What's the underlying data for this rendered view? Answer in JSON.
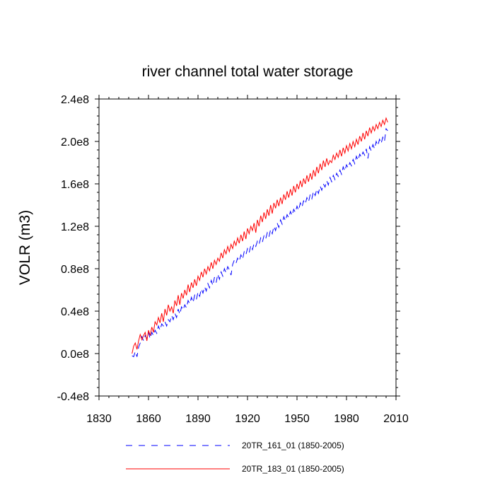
{
  "chart_data": {
    "type": "line",
    "title": "river channel total water storage",
    "xlabel": "",
    "ylabel": "VOLR  (m3)",
    "xlim": [
      1830,
      2010
    ],
    "ylim": [
      -0.4,
      2.4
    ],
    "y_scale_note": "values in units of 1e8 m3",
    "x_ticks": [
      1830,
      1860,
      1890,
      1920,
      1950,
      1980,
      2010
    ],
    "x_tick_labels": [
      "1830",
      "1860",
      "1890",
      "1920",
      "1950",
      "1980",
      "2010"
    ],
    "y_ticks": [
      -0.4,
      0.0,
      0.4,
      0.8,
      1.2,
      1.6,
      2.0,
      2.4
    ],
    "y_tick_labels": [
      "-0.4e8",
      "0.0e8",
      "0.4e8",
      "0.8e8",
      "1.2e8",
      "1.6e8",
      "2.0e8",
      "2.4e8"
    ],
    "grid": false,
    "legend_position": "bottom",
    "series": [
      {
        "name": "20TR_161_01 (1850-2005)",
        "color": "#0000ff",
        "style": "dashed",
        "x": [
          1850,
          1851,
          1852,
          1853,
          1854,
          1855,
          1856,
          1857,
          1858,
          1859,
          1860,
          1861,
          1862,
          1863,
          1864,
          1865,
          1866,
          1867,
          1868,
          1869,
          1870,
          1871,
          1872,
          1873,
          1874,
          1875,
          1876,
          1877,
          1878,
          1879,
          1880,
          1881,
          1882,
          1883,
          1884,
          1885,
          1886,
          1887,
          1888,
          1889,
          1890,
          1891,
          1892,
          1893,
          1894,
          1895,
          1896,
          1897,
          1898,
          1899,
          1900,
          1901,
          1902,
          1903,
          1904,
          1905,
          1906,
          1907,
          1908,
          1909,
          1910,
          1911,
          1912,
          1913,
          1914,
          1915,
          1916,
          1917,
          1918,
          1919,
          1920,
          1921,
          1922,
          1923,
          1924,
          1925,
          1926,
          1927,
          1928,
          1929,
          1930,
          1931,
          1932,
          1933,
          1934,
          1935,
          1936,
          1937,
          1938,
          1939,
          1940,
          1941,
          1942,
          1943,
          1944,
          1945,
          1946,
          1947,
          1948,
          1949,
          1950,
          1951,
          1952,
          1953,
          1954,
          1955,
          1956,
          1957,
          1958,
          1959,
          1960,
          1961,
          1962,
          1963,
          1964,
          1965,
          1966,
          1967,
          1968,
          1969,
          1970,
          1971,
          1972,
          1973,
          1974,
          1975,
          1976,
          1977,
          1978,
          1979,
          1980,
          1981,
          1982,
          1983,
          1984,
          1985,
          1986,
          1987,
          1988,
          1989,
          1990,
          1991,
          1992,
          1993,
          1994,
          1995,
          1996,
          1997,
          1998,
          1999,
          2000,
          2001,
          2002,
          2003,
          2004,
          2005
        ],
        "values": [
          -0.02,
          -0.03,
          0.02,
          -0.03,
          0.06,
          0.1,
          0.16,
          0.12,
          0.17,
          0.14,
          0.2,
          0.14,
          0.2,
          0.17,
          0.22,
          0.19,
          0.26,
          0.22,
          0.28,
          0.26,
          0.3,
          0.26,
          0.32,
          0.3,
          0.36,
          0.32,
          0.38,
          0.34,
          0.42,
          0.37,
          0.44,
          0.41,
          0.46,
          0.43,
          0.5,
          0.47,
          0.53,
          0.48,
          0.55,
          0.51,
          0.58,
          0.54,
          0.61,
          0.57,
          0.63,
          0.59,
          0.66,
          0.62,
          0.69,
          0.64,
          0.72,
          0.67,
          0.75,
          0.7,
          0.77,
          0.73,
          0.8,
          0.76,
          0.82,
          0.79,
          0.74,
          0.84,
          0.88,
          0.85,
          0.9,
          0.87,
          0.93,
          0.89,
          0.96,
          0.93,
          0.99,
          0.95,
          1.02,
          0.98,
          1.04,
          1.01,
          1.06,
          1.03,
          1.09,
          1.05,
          1.11,
          1.08,
          1.14,
          1.1,
          1.17,
          1.13,
          1.2,
          1.16,
          1.23,
          1.19,
          1.26,
          1.22,
          1.29,
          1.25,
          1.31,
          1.28,
          1.34,
          1.3,
          1.36,
          1.33,
          1.39,
          1.35,
          1.42,
          1.38,
          1.44,
          1.41,
          1.47,
          1.43,
          1.5,
          1.46,
          1.53,
          1.49,
          1.55,
          1.51,
          1.58,
          1.54,
          1.6,
          1.57,
          1.63,
          1.59,
          1.66,
          1.62,
          1.68,
          1.64,
          1.7,
          1.67,
          1.73,
          1.69,
          1.76,
          1.72,
          1.78,
          1.75,
          1.8,
          1.77,
          1.83,
          1.79,
          1.86,
          1.82,
          1.88,
          1.85,
          1.9,
          1.87,
          1.93,
          1.84,
          1.95,
          1.91,
          1.97,
          1.93,
          2.0,
          1.96,
          2.02,
          1.98,
          2.04,
          2.0,
          2.12,
          2.1
        ]
      },
      {
        "name": "20TR_183_01 (1850-2005)",
        "color": "#ff0000",
        "style": "solid",
        "x": [
          1850,
          1851,
          1852,
          1853,
          1854,
          1855,
          1856,
          1857,
          1858,
          1859,
          1860,
          1861,
          1862,
          1863,
          1864,
          1865,
          1866,
          1867,
          1868,
          1869,
          1870,
          1871,
          1872,
          1873,
          1874,
          1875,
          1876,
          1877,
          1878,
          1879,
          1880,
          1881,
          1882,
          1883,
          1884,
          1885,
          1886,
          1887,
          1888,
          1889,
          1890,
          1891,
          1892,
          1893,
          1894,
          1895,
          1896,
          1897,
          1898,
          1899,
          1900,
          1901,
          1902,
          1903,
          1904,
          1905,
          1906,
          1907,
          1908,
          1909,
          1910,
          1911,
          1912,
          1913,
          1914,
          1915,
          1916,
          1917,
          1918,
          1919,
          1920,
          1921,
          1922,
          1923,
          1924,
          1925,
          1926,
          1927,
          1928,
          1929,
          1930,
          1931,
          1932,
          1933,
          1934,
          1935,
          1936,
          1937,
          1938,
          1939,
          1940,
          1941,
          1942,
          1943,
          1944,
          1945,
          1946,
          1947,
          1948,
          1949,
          1950,
          1951,
          1952,
          1953,
          1954,
          1955,
          1956,
          1957,
          1958,
          1959,
          1960,
          1961,
          1962,
          1963,
          1964,
          1965,
          1966,
          1967,
          1968,
          1969,
          1970,
          1971,
          1972,
          1973,
          1974,
          1975,
          1976,
          1977,
          1978,
          1979,
          1980,
          1981,
          1982,
          1983,
          1984,
          1985,
          1986,
          1987,
          1988,
          1989,
          1990,
          1991,
          1992,
          1993,
          1994,
          1995,
          1996,
          1997,
          1998,
          1999,
          2000,
          2001,
          2002,
          2003,
          2004,
          2005
        ],
        "values": [
          0.0,
          0.07,
          0.1,
          0.04,
          0.12,
          0.18,
          0.13,
          0.17,
          0.2,
          0.12,
          0.22,
          0.17,
          0.25,
          0.2,
          0.3,
          0.27,
          0.34,
          0.29,
          0.38,
          0.3,
          0.42,
          0.36,
          0.46,
          0.4,
          0.44,
          0.38,
          0.5,
          0.45,
          0.55,
          0.46,
          0.57,
          0.52,
          0.6,
          0.55,
          0.65,
          0.58,
          0.67,
          0.62,
          0.7,
          0.64,
          0.73,
          0.69,
          0.77,
          0.72,
          0.8,
          0.75,
          0.82,
          0.78,
          0.86,
          0.8,
          0.88,
          0.84,
          0.9,
          0.87,
          0.95,
          0.9,
          0.98,
          0.94,
          1.01,
          0.96,
          1.03,
          0.99,
          1.06,
          1.02,
          1.09,
          1.04,
          1.12,
          1.06,
          1.15,
          1.08,
          1.18,
          1.13,
          1.2,
          1.16,
          1.23,
          1.14,
          1.26,
          1.2,
          1.3,
          1.24,
          1.33,
          1.27,
          1.36,
          1.3,
          1.4,
          1.32,
          1.42,
          1.37,
          1.45,
          1.39,
          1.47,
          1.41,
          1.5,
          1.45,
          1.53,
          1.47,
          1.55,
          1.49,
          1.58,
          1.52,
          1.6,
          1.55,
          1.63,
          1.57,
          1.65,
          1.6,
          1.68,
          1.62,
          1.7,
          1.64,
          1.73,
          1.67,
          1.76,
          1.7,
          1.79,
          1.73,
          1.82,
          1.76,
          1.84,
          1.78,
          1.82,
          1.8,
          1.87,
          1.83,
          1.89,
          1.85,
          1.92,
          1.86,
          1.94,
          1.89,
          1.96,
          1.91,
          1.98,
          1.93,
          2.0,
          1.95,
          2.02,
          1.97,
          2.05,
          2.0,
          2.08,
          2.02,
          2.1,
          2.05,
          2.13,
          2.08,
          2.14,
          2.1,
          2.16,
          2.12,
          2.18,
          2.14,
          2.2,
          2.16,
          2.22,
          2.18
        ]
      }
    ]
  }
}
